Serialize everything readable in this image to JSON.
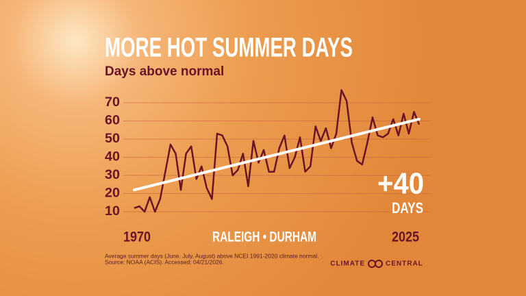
{
  "chart_data": {
    "type": "line",
    "title": "MORE HOT SUMMER DAYS",
    "subtitle": "Days above normal",
    "x": [
      1970,
      1971,
      1972,
      1973,
      1974,
      1975,
      1976,
      1977,
      1978,
      1979,
      1980,
      1981,
      1982,
      1983,
      1984,
      1985,
      1986,
      1987,
      1988,
      1989,
      1990,
      1991,
      1992,
      1993,
      1994,
      1995,
      1996,
      1997,
      1998,
      1999,
      2000,
      2001,
      2002,
      2003,
      2004,
      2005,
      2006,
      2007,
      2008,
      2009,
      2010,
      2011,
      2012,
      2013,
      2014,
      2015,
      2016,
      2017,
      2018,
      2019,
      2020,
      2021,
      2022,
      2023,
      2024,
      2025
    ],
    "xlim": [
      1970,
      2025
    ],
    "xticks": [
      1970,
      2025
    ],
    "ylim": [
      10,
      70
    ],
    "yticks": [
      10,
      20,
      30,
      40,
      50,
      60,
      70
    ],
    "grid": true,
    "series": [
      {
        "color": "#6a1428",
        "values": [
          12,
          13,
          10,
          18,
          10,
          17,
          32,
          47,
          42,
          22,
          42,
          46,
          28,
          35,
          23,
          17,
          53,
          52,
          46,
          30,
          33,
          42,
          24,
          49,
          37,
          44,
          32,
          32,
          45,
          52,
          34,
          40,
          51,
          32,
          35,
          57,
          49,
          56,
          45,
          53,
          77,
          71,
          48,
          38,
          36,
          48,
          62,
          52,
          51,
          53,
          61,
          52,
          64,
          53,
          65,
          58
        ]
      }
    ],
    "trend": {
      "color": "#ffffff",
      "x": [
        1970,
        2025
      ],
      "values": [
        22,
        61
      ]
    },
    "annotation": {
      "text": "+40",
      "unit": "DAYS"
    },
    "location": "RALEIGH • DURHAM",
    "notes": [
      "Average summer days (June, July, August) above NCEI 1991-2020 climate normal.",
      "Source: NOAA (ACIS). Accessed: 04/21/2026."
    ],
    "brand": [
      "CLIMATE",
      "CENTRAL"
    ]
  }
}
